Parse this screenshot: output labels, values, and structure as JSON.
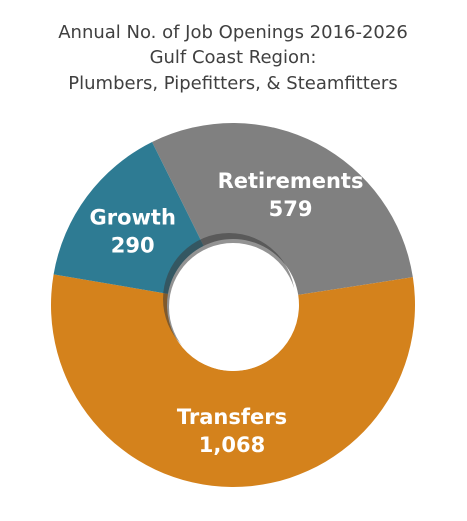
{
  "chart_data": {
    "type": "pie",
    "title": [
      "Annual No. of Job Openings 2016-2026",
      "Gulf Coast Region:",
      "Plumbers, Pipefitters, & Steamfitters"
    ],
    "categories": [
      "Retirements",
      "Transfers",
      "Growth"
    ],
    "values": [
      579,
      1068,
      290
    ],
    "value_labels": [
      "579",
      "1,068",
      "290"
    ],
    "colors": [
      "#808080",
      "#d4821c",
      "#2e7b93"
    ]
  }
}
